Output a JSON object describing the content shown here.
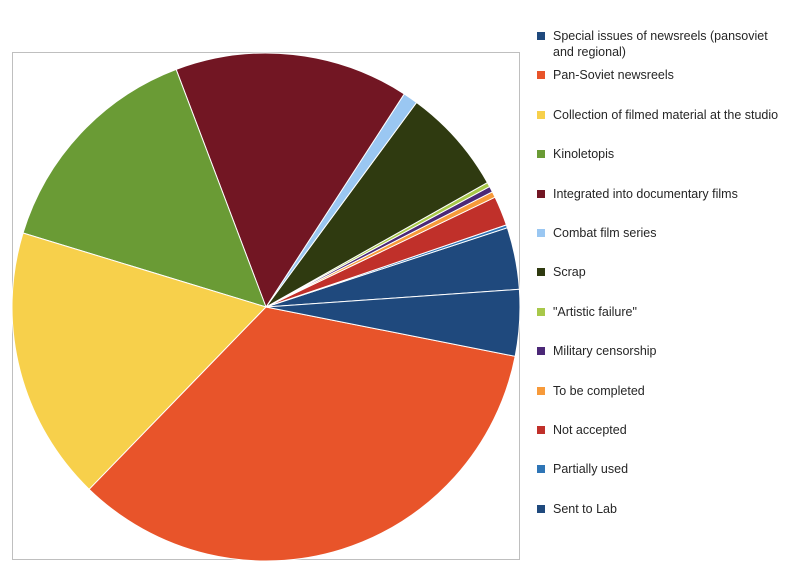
{
  "chart_data": {
    "type": "pie",
    "title": "",
    "legend_position": "right",
    "slices": [
      {
        "label": "Special issues of newsreels (pansoviet and regional)",
        "value": 4.5,
        "color": "#1f497d"
      },
      {
        "label": "Pan-Soviet newsreels",
        "value": 36.4,
        "color": "#e8542a"
      },
      {
        "label": "Collection of filmed material at the studio",
        "value": 18.6,
        "color": "#f7d04b"
      },
      {
        "label": "Kinoletopis",
        "value": 15.5,
        "color": "#6a9b35"
      },
      {
        "label": "Integrated into documentary films",
        "value": 15.9,
        "color": "#721623"
      },
      {
        "label": "Combat film series",
        "value": 1.0,
        "color": "#9ac7f2"
      },
      {
        "label": "Scrap",
        "value": 7.2,
        "color": "#2f3a10"
      },
      {
        "label": "\"Artistic failure\"",
        "value": 0.3,
        "color": "#a8c84a"
      },
      {
        "label": "Military censorship",
        "value": 0.4,
        "color": "#4b2877"
      },
      {
        "label": "To be completed",
        "value": 0.4,
        "color": "#f79a3a"
      },
      {
        "label": "Not accepted",
        "value": 2.0,
        "color": "#c0302a"
      },
      {
        "label": "Partially used",
        "value": 0.2,
        "color": "#2e75b6"
      },
      {
        "label": "Sent to Lab",
        "value": 4.2,
        "color": "#1f497d"
      }
    ]
  }
}
